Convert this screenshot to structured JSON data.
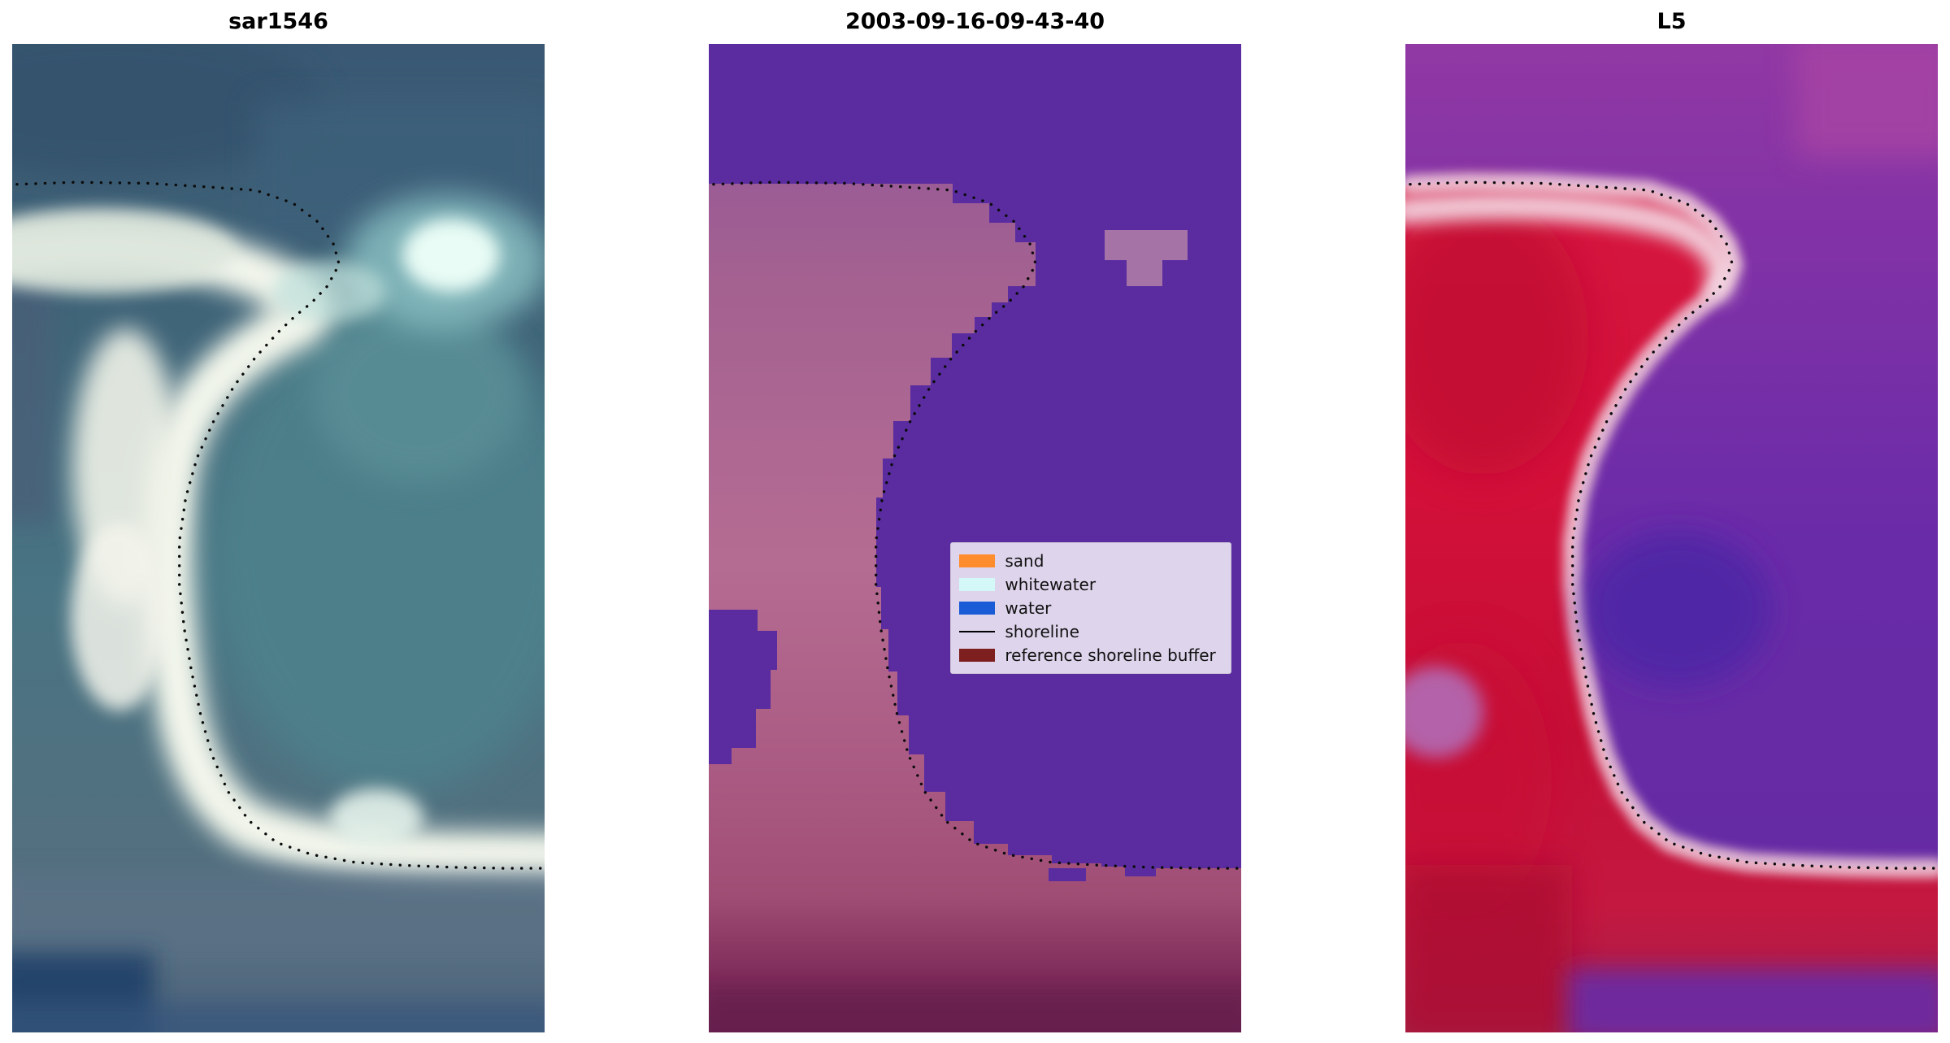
{
  "chart_data": {
    "type": "heatmap",
    "subtype": "satellite-shoreline-detection-triptych",
    "panels": [
      {
        "title": "sar1546"
      },
      {
        "title": "2003-09-16-09-43-40"
      },
      {
        "title": "L5"
      }
    ],
    "legend": {
      "position": "center-right of middle panel",
      "entries": [
        {
          "label": "sand",
          "color": "#ff8c2d",
          "type": "patch"
        },
        {
          "label": "whitewater",
          "color": "#d4f7f7",
          "type": "patch"
        },
        {
          "label": "water",
          "color": "#1a5cd6",
          "type": "patch"
        },
        {
          "label": "shoreline",
          "color": "#000000",
          "type": "line"
        },
        {
          "label": "reference shoreline buffer",
          "color": "#7d1f1f",
          "type": "patch"
        }
      ]
    },
    "shoreline_points": [
      [
        0.009,
        0.142
      ],
      [
        0.117,
        0.14
      ],
      [
        0.258,
        0.141
      ],
      [
        0.375,
        0.145
      ],
      [
        0.457,
        0.148
      ],
      [
        0.527,
        0.161
      ],
      [
        0.574,
        0.18
      ],
      [
        0.604,
        0.203
      ],
      [
        0.614,
        0.223
      ],
      [
        0.592,
        0.245
      ],
      [
        0.562,
        0.262
      ],
      [
        0.532,
        0.275
      ],
      [
        0.499,
        0.292
      ],
      [
        0.457,
        0.317
      ],
      [
        0.417,
        0.346
      ],
      [
        0.379,
        0.381
      ],
      [
        0.347,
        0.419
      ],
      [
        0.326,
        0.459
      ],
      [
        0.314,
        0.503
      ],
      [
        0.314,
        0.547
      ],
      [
        0.323,
        0.591
      ],
      [
        0.337,
        0.635
      ],
      [
        0.354,
        0.679
      ],
      [
        0.375,
        0.719
      ],
      [
        0.405,
        0.756
      ],
      [
        0.445,
        0.786
      ],
      [
        0.497,
        0.808
      ],
      [
        0.562,
        0.82
      ],
      [
        0.644,
        0.828
      ],
      [
        0.738,
        0.831
      ],
      [
        0.831,
        0.833
      ],
      [
        0.925,
        0.834
      ],
      [
        0.995,
        0.834
      ]
    ],
    "palette": {
      "classification_water_purple": "#5a2ca0",
      "classification_buffer_pink": "#b56c92",
      "classification_bottom_maroon": "#6a2050",
      "sar_teal": "#497483",
      "sar_sand_white": "#eef3e9",
      "l5_red": "#d2143c",
      "l5_purple": "#6a2ba8"
    }
  }
}
